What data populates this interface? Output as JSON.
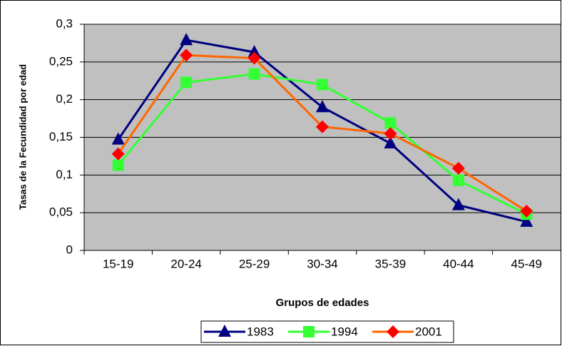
{
  "chart_data": {
    "type": "line",
    "xlabel": "Grupos de edades",
    "ylabel": "Tasas de la Fecundidad por edad",
    "categories": [
      "15-19",
      "20-24",
      "25-29",
      "30-34",
      "35-39",
      "40-44",
      "45-49"
    ],
    "series": [
      {
        "name": "1983",
        "color": "#000080",
        "marker_color": "#000080",
        "marker": "triangle",
        "values": [
          0.147,
          0.279,
          0.263,
          0.19,
          0.142,
          0.06,
          0.038
        ]
      },
      {
        "name": "1994",
        "color": "#33ff33",
        "marker_color": "#33ff33",
        "marker": "square",
        "values": [
          0.113,
          0.223,
          0.234,
          0.22,
          0.169,
          0.093,
          0.048
        ]
      },
      {
        "name": "2001",
        "color": "#ff6600",
        "marker_color": "#ff0000",
        "marker": "diamond",
        "values": [
          0.128,
          0.259,
          0.255,
          0.164,
          0.155,
          0.109,
          0.052
        ]
      }
    ],
    "ylim": [
      0,
      0.3
    ],
    "yticks": [
      0,
      {
        "value": 0.05,
        "label": "0,05"
      },
      {
        "value": 0.1,
        "label": "0,1"
      },
      {
        "value": 0.15,
        "label": "0,15"
      },
      {
        "value": 0.2,
        "label": "0,2"
      },
      {
        "value": 0.25,
        "label": "0,25"
      },
      {
        "value": 0.3,
        "label": "0,3"
      }
    ],
    "grid": true,
    "plot_background": "#c0c0c0",
    "legend": "bottom"
  }
}
